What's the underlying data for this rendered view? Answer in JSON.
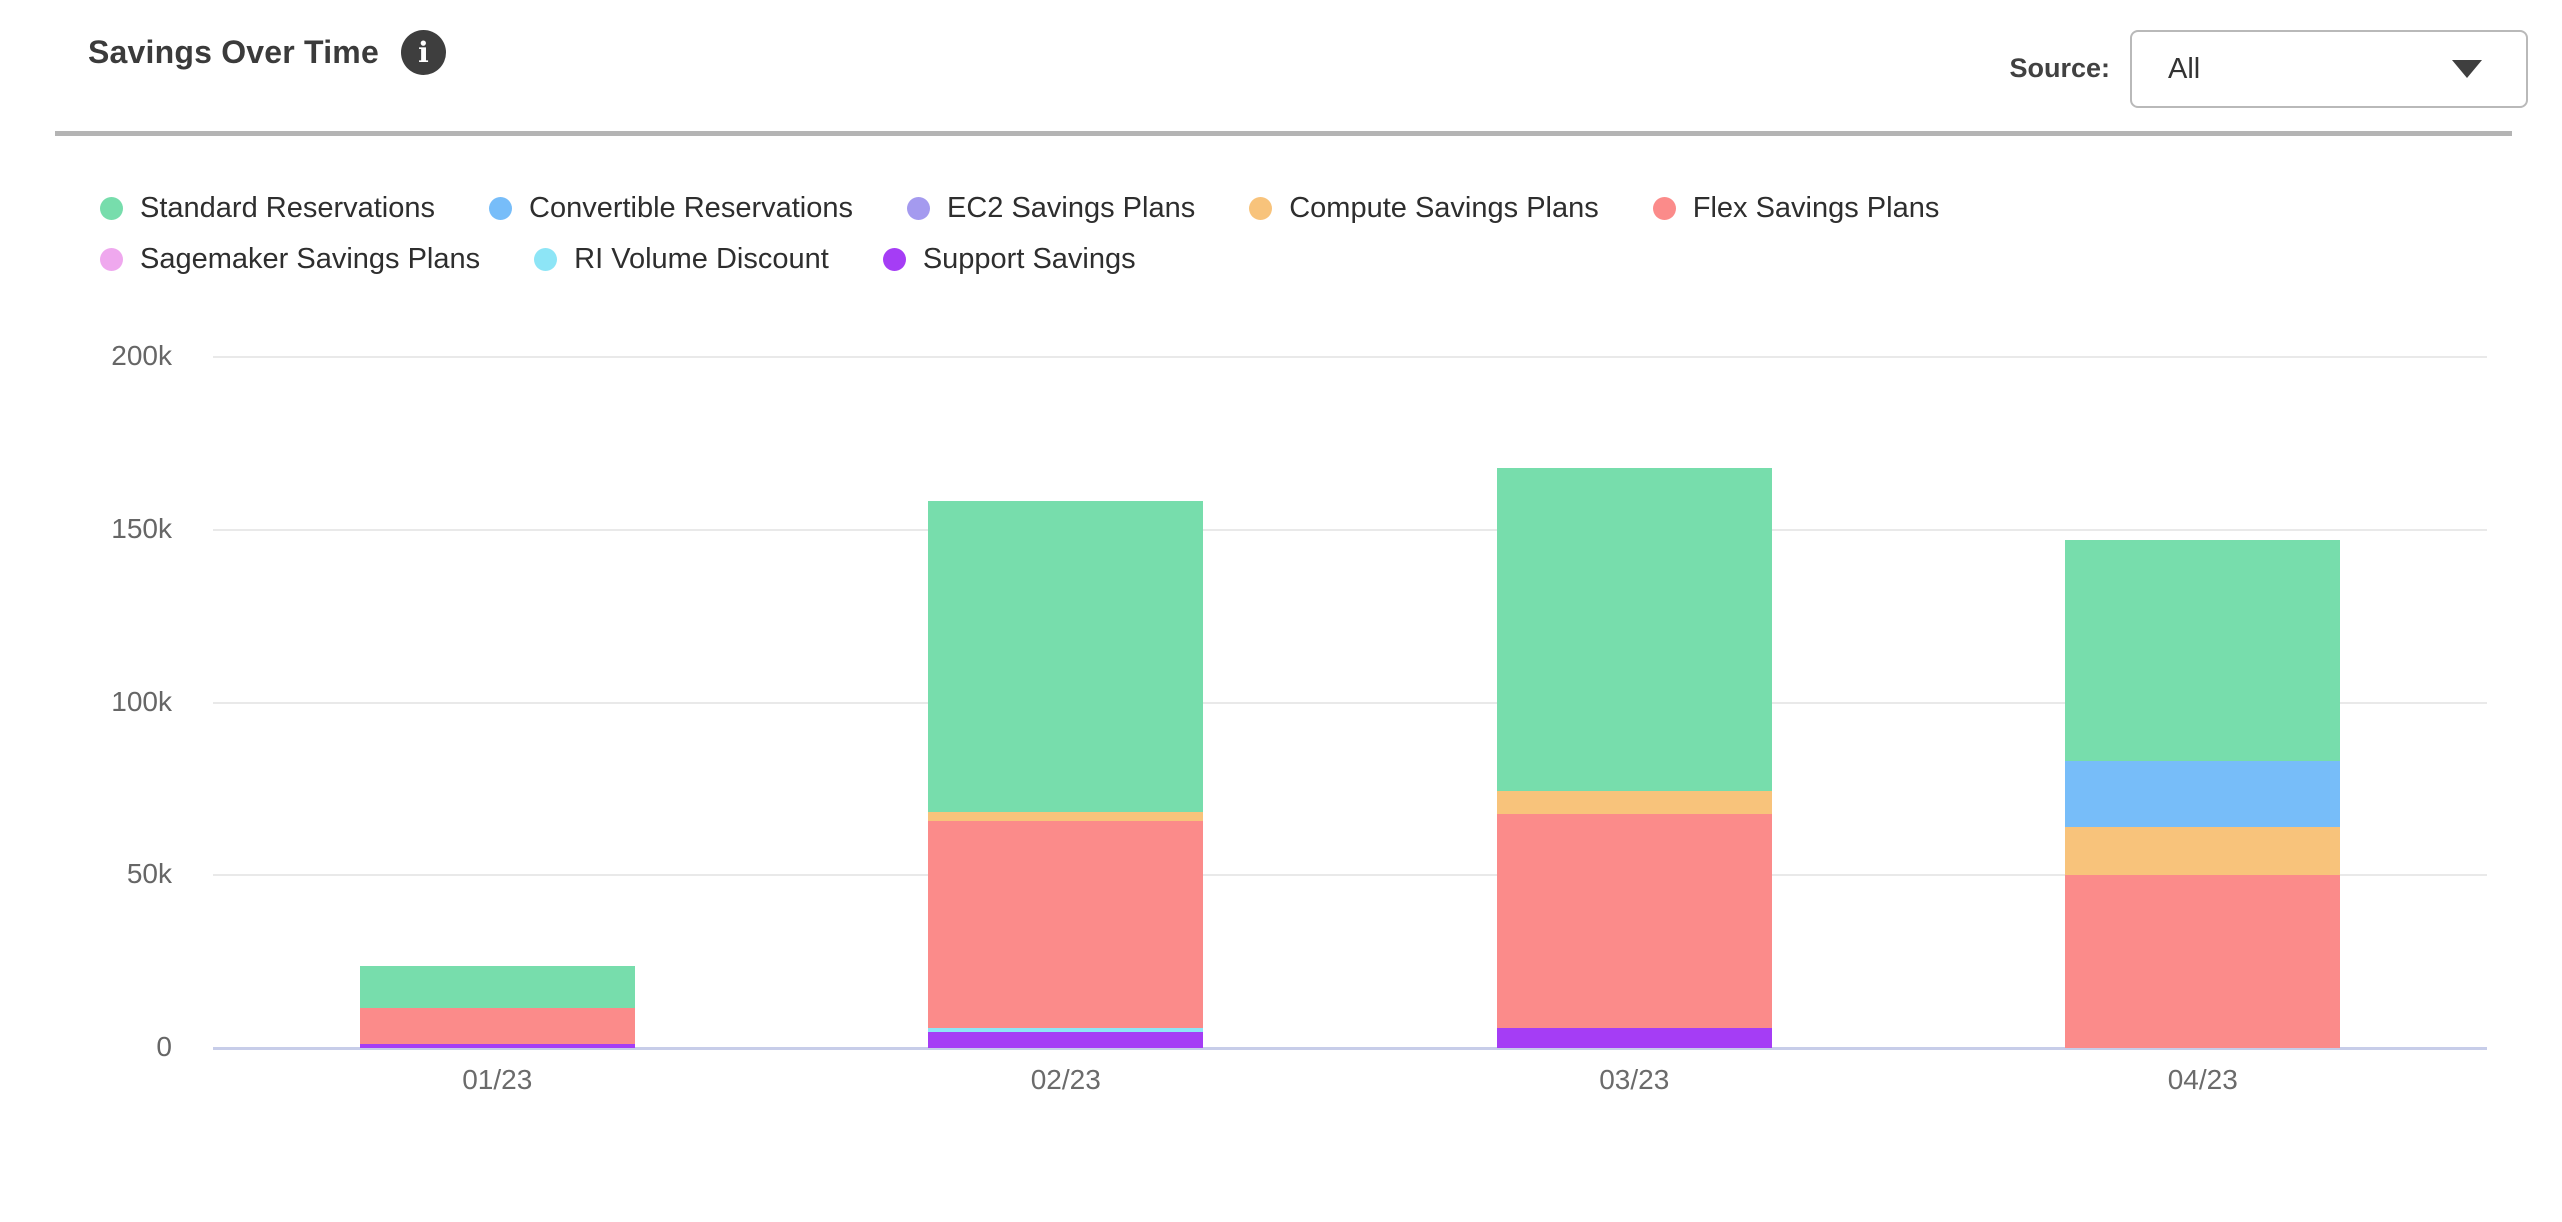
{
  "header": {
    "title": "Savings Over Time",
    "source": {
      "label": "Source:",
      "value": "All"
    }
  },
  "icons": {
    "info-icon": "i",
    "chevron-down-icon": "▼"
  },
  "chart_data": {
    "type": "bar",
    "stacked": true,
    "title": "Savings Over Time",
    "categories": [
      "01/23",
      "02/23",
      "03/23",
      "04/23"
    ],
    "series": [
      {
        "name": "Standard Reservations",
        "color": "#77DDAC",
        "values": [
          12000,
          90000,
          93500,
          64000
        ]
      },
      {
        "name": "Convertible Reservations",
        "color": "#77BDF9",
        "values": [
          0,
          0,
          0,
          19000
        ]
      },
      {
        "name": "EC2 Savings Plans",
        "color": "#A49AEF",
        "values": [
          0,
          0,
          0,
          0
        ]
      },
      {
        "name": "Compute Savings Plans",
        "color": "#F8C37B",
        "values": [
          0,
          2500,
          6500,
          14000
        ]
      },
      {
        "name": "Flex Savings Plans",
        "color": "#FB8B8A",
        "values": [
          10500,
          60000,
          62000,
          50000
        ]
      },
      {
        "name": "Sagemaker Savings Plans",
        "color": "#EFA8EE",
        "values": [
          0,
          0,
          0,
          0
        ]
      },
      {
        "name": "RI Volume Discount",
        "color": "#8DE5F6",
        "values": [
          0,
          1200,
          0,
          0
        ]
      },
      {
        "name": "Support Savings",
        "color": "#A53DF5",
        "values": [
          1200,
          4500,
          5800,
          0
        ]
      }
    ],
    "stack_order": "bottom-to-top is reverse of series order (Support Savings at bottom, Standard Reservations on top)",
    "totals": [
      23700,
      158200,
      167800,
      147000
    ],
    "y_axis": {
      "max": 200000,
      "ticks": [
        {
          "value": 0,
          "label": "0"
        },
        {
          "value": 50000,
          "label": "50k"
        },
        {
          "value": 100000,
          "label": "100k"
        },
        {
          "value": 150000,
          "label": "150k"
        },
        {
          "value": 200000,
          "label": "200k"
        }
      ]
    },
    "grid": true,
    "legend_position": "top-left",
    "colors": {
      "axis_line": "#C7CDE9",
      "gridline": "#E9E9E9",
      "divider": "#B4B4B4",
      "info_badge": "#3E3E3E"
    }
  }
}
